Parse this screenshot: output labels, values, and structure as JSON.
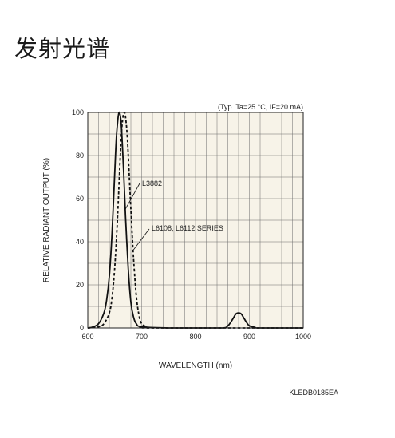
{
  "page": {
    "title": "发射光谱"
  },
  "figure_code": "KLEDB0185EA",
  "chart_data": {
    "type": "line",
    "title": "",
    "note": "(Typ. Ta=25 °C, IF=20 mA)",
    "xlabel": "WAVELENGTH (nm)",
    "ylabel": "RELATIVE RADIANT OUTPUT (%)",
    "xlim": [
      600,
      1000
    ],
    "ylim": [
      0,
      100
    ],
    "xticks": [
      600,
      700,
      800,
      900,
      1000
    ],
    "yticks": [
      0,
      20,
      40,
      60,
      80,
      100
    ],
    "grid": true,
    "background": "#f7f3e8",
    "series": [
      {
        "name": "L3882",
        "style": "solid",
        "x": [
          600,
          610,
          620,
          630,
          635,
          640,
          645,
          650,
          653,
          656,
          658,
          660,
          662,
          664,
          667,
          670,
          675,
          680,
          685,
          690,
          700,
          750,
          800,
          850,
          860,
          865,
          870,
          875,
          880,
          885,
          890,
          895,
          900,
          910,
          920,
          1000
        ],
        "y": [
          0,
          0.5,
          2,
          7,
          13,
          24,
          44,
          72,
          88,
          97,
          100,
          99,
          95,
          86,
          70,
          52,
          28,
          12,
          5,
          2,
          0.5,
          0,
          0,
          0,
          1,
          2.5,
          4.5,
          6.5,
          7,
          6.5,
          4.5,
          2.5,
          1,
          0.3,
          0,
          0
        ]
      },
      {
        "name": "L6108, L6112 SERIES",
        "style": "dashed",
        "x": [
          600,
          620,
          630,
          640,
          645,
          650,
          655,
          660,
          663,
          666,
          668,
          670,
          673,
          676,
          680,
          685,
          690,
          695,
          700,
          710,
          720,
          1000
        ],
        "y": [
          0,
          0.5,
          2,
          7,
          14,
          28,
          50,
          78,
          92,
          99,
          100,
          98,
          90,
          76,
          55,
          32,
          15,
          6,
          2,
          0.5,
          0,
          0
        ]
      }
    ],
    "annotations": [
      {
        "text": "L3882",
        "series": 0
      },
      {
        "text": "L6108, L6112 SERIES",
        "series": 1
      }
    ]
  }
}
